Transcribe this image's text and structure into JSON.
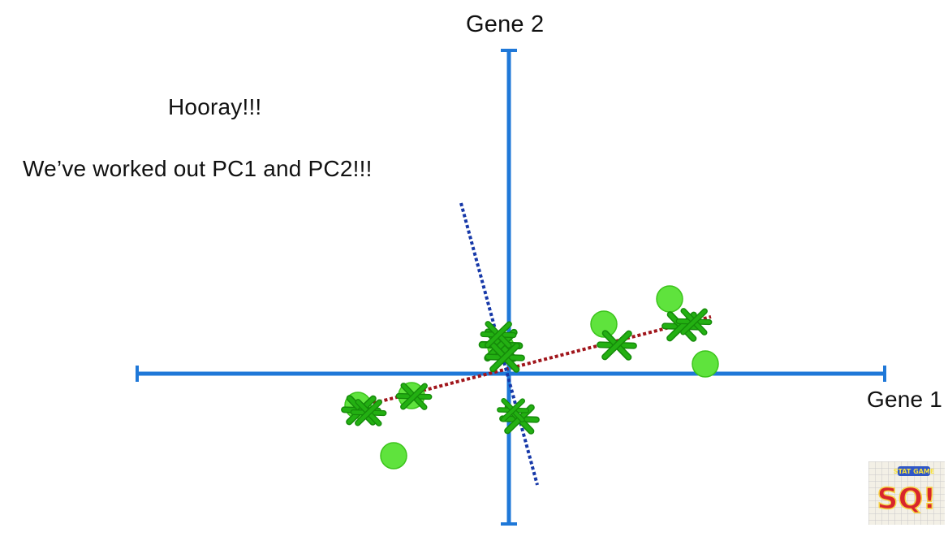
{
  "axes": {
    "x_label": "Gene 1",
    "y_label": "Gene 2"
  },
  "message": {
    "line1": "Hooray!!!",
    "line2": "We’ve worked out PC1 and PC2!!!"
  },
  "colors": {
    "axis": "#1f78d8",
    "pc1_line": "#a0151b",
    "pc2_line": "#1638a8",
    "data_point": "#5fe33d",
    "projection_mark": "#23b012"
  },
  "logo": {
    "text": "SQ!",
    "small_text": "STAT GAME"
  }
}
